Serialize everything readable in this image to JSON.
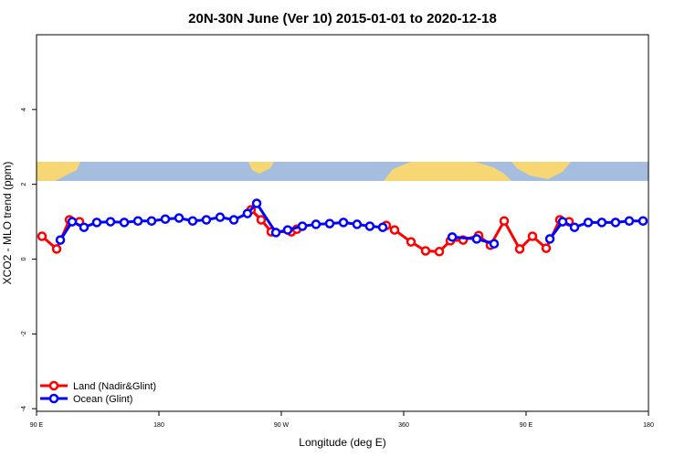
{
  "chart_data": {
    "type": "line",
    "title": "20N-30N June (Ver 10)   2015-01-01 to 2020-12-18",
    "x_label": "Longitude (deg E)",
    "y_label": "XCO2 - MLO trend (ppm)",
    "xlim": [
      90,
      540
    ],
    "ylim": [
      -4.07,
      6
    ],
    "xticks": [
      {
        "value": 90,
        "label": "90 E"
      },
      180,
      {
        "value": 270,
        "label": "90 W"
      },
      360,
      {
        "value": 450,
        "label": "90 E"
      },
      {
        "value": 540,
        "label": "180"
      }
    ],
    "yticks": [
      -4,
      -2,
      0,
      2,
      4
    ],
    "legend": "bottom-left",
    "series": [
      {
        "name": "Land (Nadir&Glint)",
        "color": "#ff0000",
        "x": [
          94,
          104.8,
          114.2,
          121.6,
          null,
          247.8,
          255.2,
          262.6,
          277.4,
          281.4,
          null,
          347.2,
          353.3,
          365.4,
          376.1,
          386.2,
          394.3,
          403.7,
          415.1,
          423.8,
          433.9,
          445.3,
          454.7,
          464.8,
          474.8,
          481.6
        ],
        "values": [
          0.61,
          0.27,
          1.05,
          1.0,
          null,
          1.32,
          1.05,
          0.73,
          0.73,
          0.8,
          null,
          0.9,
          0.78,
          0.46,
          0.22,
          0.2,
          0.49,
          0.51,
          0.63,
          0.37,
          1.02,
          0.27,
          0.61,
          0.29,
          1.05,
          1.0
        ]
      },
      {
        "name": "Ocean (Glint)",
        "color": "#0000ff",
        "x": [
          107.5,
          116.2,
          124.9,
          134.3,
          144.4,
          154.5,
          164.6,
          174.6,
          184.7,
          194.8,
          204.8,
          214.9,
          225,
          235.1,
          245.1,
          251.9,
          266,
          274.7,
          285.5,
          295.5,
          305.6,
          315.7,
          325.7,
          335.1,
          344.6,
          null,
          395.7,
          413.7,
          426.5,
          null,
          467.5,
          476.9,
          485.6,
          495.7,
          505.7,
          515.8,
          525.9,
          536
        ],
        "values": [
          0.51,
          1.0,
          0.85,
          0.98,
          1.0,
          0.98,
          1.02,
          1.02,
          1.07,
          1.1,
          1.02,
          1.05,
          1.12,
          1.05,
          1.22,
          1.49,
          0.71,
          0.78,
          0.88,
          0.93,
          0.95,
          0.98,
          0.93,
          0.88,
          0.85,
          null,
          0.59,
          0.54,
          0.41,
          null,
          0.54,
          1.0,
          0.85,
          0.98,
          0.98,
          0.98,
          1.02,
          1.02
        ]
      }
    ]
  }
}
